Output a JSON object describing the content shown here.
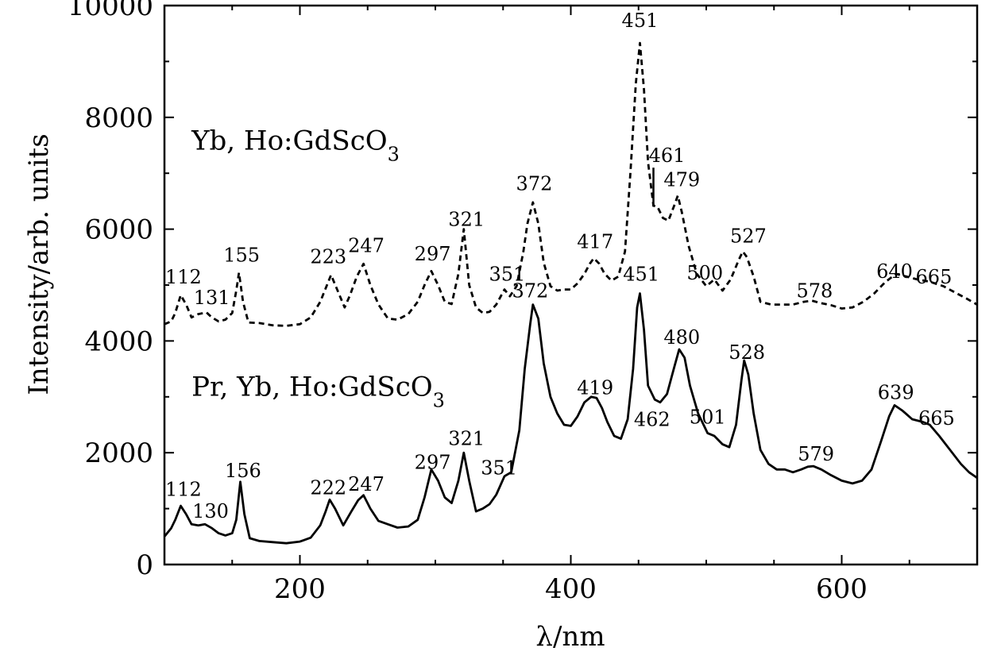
{
  "chart_data": {
    "type": "line",
    "xlabel": "λ/nm",
    "ylabel": "Intensity/arb. units",
    "xlim": [
      100,
      700
    ],
    "ylim": [
      0,
      10000
    ],
    "xticks": [
      200,
      400,
      600
    ],
    "yticks": [
      0,
      2000,
      4000,
      6000,
      8000,
      10000
    ],
    "xtick_labels": [
      "200",
      "400",
      "600"
    ],
    "ytick_labels": [
      "0",
      "2000",
      "4000",
      "6000",
      "8000",
      "10000"
    ],
    "grid": false,
    "series": [
      {
        "name": "Yb, Ho:GdScO",
        "name_subscript": "3",
        "style": "dashed",
        "color": "#000000",
        "x": [
          100,
          105,
          108,
          112,
          116,
          120,
          125,
          131,
          135,
          140,
          145,
          150,
          153,
          155,
          158,
          162,
          170,
          180,
          190,
          200,
          208,
          215,
          220,
          223,
          227,
          233,
          237,
          242,
          247,
          252,
          258,
          265,
          272,
          280,
          287,
          292,
          297,
          302,
          307,
          312,
          317,
          321,
          325,
          330,
          335,
          340,
          345,
          351,
          355,
          360,
          365,
          368,
          372,
          376,
          380,
          385,
          390,
          395,
          400,
          405,
          410,
          414,
          417,
          421,
          425,
          430,
          435,
          440,
          444,
          448,
          451,
          454,
          457,
          461,
          464,
          468,
          472,
          476,
          479,
          482,
          487,
          493,
          500,
          506,
          512,
          518,
          524,
          527,
          530,
          535,
          540,
          548,
          556,
          564,
          572,
          578,
          584,
          592,
          600,
          608,
          616,
          624,
          632,
          640,
          648,
          656,
          665,
          675,
          685,
          692,
          700
        ],
        "y": [
          4300,
          4350,
          4500,
          4820,
          4650,
          4420,
          4480,
          4510,
          4420,
          4350,
          4380,
          4500,
          4900,
          5220,
          4700,
          4330,
          4320,
          4280,
          4270,
          4300,
          4420,
          4700,
          5000,
          5180,
          4950,
          4600,
          4820,
          5150,
          5380,
          5000,
          4650,
          4400,
          4380,
          4480,
          4700,
          5000,
          5250,
          5000,
          4700,
          4660,
          5200,
          6000,
          5000,
          4600,
          4500,
          4520,
          4650,
          4920,
          4800,
          4980,
          5600,
          6100,
          6480,
          6100,
          5400,
          4980,
          4900,
          4920,
          4920,
          5030,
          5200,
          5380,
          5480,
          5380,
          5200,
          5080,
          5150,
          5600,
          7000,
          8600,
          9330,
          8500,
          7200,
          6420,
          6400,
          6200,
          6150,
          6400,
          6600,
          6300,
          5700,
          5200,
          4980,
          5100,
          4900,
          5100,
          5450,
          5600,
          5500,
          5150,
          4700,
          4650,
          4650,
          4650,
          4700,
          4720,
          4680,
          4640,
          4580,
          4600,
          4700,
          4850,
          5050,
          5200,
          5150,
          5100,
          5060,
          4980,
          4850,
          4760,
          4650
        ]
      },
      {
        "name": "Pr, Yb, Ho:GdScO",
        "name_subscript": "3",
        "style": "solid",
        "color": "#000000",
        "x": [
          100,
          105,
          108,
          112,
          116,
          120,
          125,
          130,
          135,
          140,
          145,
          150,
          153,
          156,
          159,
          163,
          170,
          180,
          190,
          200,
          208,
          215,
          219,
          222,
          226,
          232,
          238,
          243,
          247,
          252,
          258,
          265,
          272,
          280,
          287,
          292,
          297,
          302,
          307,
          312,
          317,
          321,
          325,
          330,
          335,
          340,
          345,
          351,
          356,
          362,
          366,
          370,
          372,
          376,
          380,
          385,
          390,
          395,
          400,
          405,
          410,
          415,
          419,
          423,
          427,
          432,
          437,
          442,
          446,
          449,
          451,
          454,
          457,
          462,
          466,
          471,
          476,
          480,
          484,
          488,
          494,
          501,
          506,
          512,
          517,
          522,
          526,
          528,
          531,
          535,
          540,
          546,
          552,
          558,
          564,
          570,
          575,
          579,
          585,
          592,
          600,
          608,
          615,
          622,
          629,
          635,
          639,
          645,
          652,
          660,
          665,
          672,
          680,
          688,
          694,
          700
        ],
        "y": [
          500,
          650,
          800,
          1050,
          900,
          720,
          700,
          720,
          650,
          560,
          520,
          560,
          800,
          1480,
          900,
          470,
          420,
          400,
          380,
          410,
          480,
          700,
          950,
          1160,
          1000,
          700,
          950,
          1150,
          1240,
          1000,
          780,
          720,
          660,
          680,
          800,
          1200,
          1700,
          1500,
          1200,
          1100,
          1500,
          2000,
          1500,
          950,
          1000,
          1080,
          1250,
          1580,
          1650,
          2400,
          3500,
          4300,
          4650,
          4400,
          3600,
          3000,
          2700,
          2500,
          2480,
          2650,
          2900,
          3000,
          2980,
          2800,
          2550,
          2300,
          2250,
          2600,
          3500,
          4600,
          4850,
          4200,
          3200,
          2950,
          2900,
          3050,
          3500,
          3850,
          3700,
          3200,
          2700,
          2350,
          2300,
          2150,
          2100,
          2500,
          3300,
          3650,
          3400,
          2700,
          2050,
          1800,
          1700,
          1700,
          1650,
          1700,
          1750,
          1760,
          1700,
          1600,
          1500,
          1450,
          1500,
          1700,
          2200,
          2650,
          2850,
          2750,
          2600,
          2550,
          2500,
          2300,
          2050,
          1800,
          1650,
          1550
        ]
      }
    ],
    "series_labels": [
      {
        "text": "Yb, Ho:GdScO",
        "subscript": "3",
        "x": 120,
        "y": 7420
      },
      {
        "text": "Pr, Yb, Ho:GdScO",
        "subscript": "3",
        "x": 120,
        "y": 3020
      }
    ],
    "annotations": [
      {
        "text": "112",
        "x": 114,
        "y": 5030
      },
      {
        "text": "131",
        "x": 135,
        "y": 4660
      },
      {
        "text": "155",
        "x": 157,
        "y": 5420
      },
      {
        "text": "223",
        "x": 221,
        "y": 5390
      },
      {
        "text": "247",
        "x": 249,
        "y": 5590
      },
      {
        "text": "297",
        "x": 298,
        "y": 5440
      },
      {
        "text": "321",
        "x": 323,
        "y": 6060
      },
      {
        "text": "351",
        "x": 353,
        "y": 5080
      },
      {
        "text": "372",
        "x": 373,
        "y": 6700
      },
      {
        "text": "417",
        "x": 418,
        "y": 5660
      },
      {
        "text": "451",
        "x": 451,
        "y": 9620
      },
      {
        "text": "461",
        "x": 471,
        "y": 7200
      },
      {
        "text": "479",
        "x": 482,
        "y": 6770
      },
      {
        "text": "500",
        "x": 499,
        "y": 5100
      },
      {
        "text": "527",
        "x": 531,
        "y": 5760
      },
      {
        "text": "578",
        "x": 580,
        "y": 4780
      },
      {
        "text": "640",
        "x": 639,
        "y": 5130
      },
      {
        "text": "665",
        "x": 668,
        "y": 5030
      },
      {
        "text": "372",
        "x": 370,
        "y": 4780
      },
      {
        "text": "451",
        "x": 452,
        "y": 5080
      },
      {
        "text": "112",
        "x": 114,
        "y": 1230
      },
      {
        "text": "130",
        "x": 134,
        "y": 840
      },
      {
        "text": "156",
        "x": 158,
        "y": 1560
      },
      {
        "text": "222",
        "x": 221,
        "y": 1260
      },
      {
        "text": "247",
        "x": 249,
        "y": 1320
      },
      {
        "text": "297",
        "x": 298,
        "y": 1710
      },
      {
        "text": "321",
        "x": 323,
        "y": 2140
      },
      {
        "text": "351",
        "x": 347,
        "y": 1610
      },
      {
        "text": "419",
        "x": 418,
        "y": 3050
      },
      {
        "text": "462",
        "x": 460,
        "y": 2480
      },
      {
        "text": "480",
        "x": 482,
        "y": 3950
      },
      {
        "text": "501",
        "x": 501,
        "y": 2520
      },
      {
        "text": "528",
        "x": 530,
        "y": 3680
      },
      {
        "text": "579",
        "x": 581,
        "y": 1860
      },
      {
        "text": "639",
        "x": 640,
        "y": 2960
      },
      {
        "text": "665",
        "x": 670,
        "y": 2500
      }
    ]
  }
}
